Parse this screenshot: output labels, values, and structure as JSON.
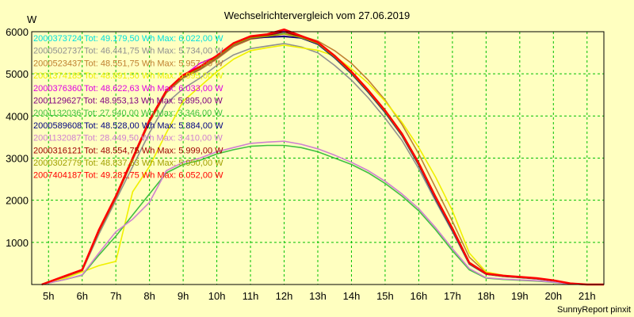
{
  "chart_data": {
    "type": "line",
    "title": "Wechselrichtervergleich vom 27.06.2019",
    "ylabel": "W",
    "ylim": [
      0,
      6000
    ],
    "xlim": [
      4.5,
      21.5
    ],
    "yticks": [
      1000,
      2000,
      3000,
      4000,
      5000,
      6000
    ],
    "xticks": [
      {
        "x": 5,
        "label": "5h"
      },
      {
        "x": 6,
        "label": "6h"
      },
      {
        "x": 7,
        "label": "7h"
      },
      {
        "x": 8,
        "label": "8h"
      },
      {
        "x": 9,
        "label": "9h"
      },
      {
        "x": 10,
        "label": "10h"
      },
      {
        "x": 11,
        "label": "11h"
      },
      {
        "x": 12,
        "label": "12h"
      },
      {
        "x": 13,
        "label": "13h"
      },
      {
        "x": 14,
        "label": "14h"
      },
      {
        "x": 15,
        "label": "15h"
      },
      {
        "x": 16,
        "label": "16h"
      },
      {
        "x": 17,
        "label": "17h"
      },
      {
        "x": 18,
        "label": "18h"
      },
      {
        "x": 19,
        "label": "19h"
      },
      {
        "x": 20,
        "label": "20h"
      },
      {
        "x": 21,
        "label": "21h"
      }
    ],
    "grid": true,
    "legend_placement": "top-left",
    "footer": "SunnyReport pinxit",
    "series": [
      {
        "name": "2000373724 Tot: 49.179,50 Wh Max: 6.022,00 W",
        "color": "#00e0e0",
        "x": [
          4.8,
          5.5,
          6,
          6.5,
          7,
          7.5,
          8,
          8.5,
          9,
          9.5,
          10,
          10.5,
          11,
          11.5,
          12,
          12.5,
          13,
          13.5,
          14,
          14.5,
          15,
          15.5,
          16,
          16.5,
          17,
          17.5,
          18,
          18.5,
          19,
          19.5,
          20,
          20.5,
          21,
          21.5
        ],
        "y": [
          0,
          200,
          350,
          1300,
          2100,
          3000,
          3900,
          4600,
          4950,
          5150,
          5400,
          5700,
          5860,
          5900,
          5960,
          5860,
          5720,
          5400,
          5020,
          4580,
          4100,
          3550,
          2850,
          2050,
          1300,
          500,
          250,
          200,
          170,
          140,
          90,
          20,
          0,
          0
        ]
      },
      {
        "name": "2000502737 Tot: 46.441,75 Wh Max: 5.734,00 W",
        "color": "#909090",
        "x": [
          4.8,
          5.5,
          6,
          6.5,
          7,
          7.5,
          8,
          8.5,
          9,
          9.5,
          10,
          10.5,
          11,
          11.5,
          12,
          12.5,
          13,
          13.5,
          14,
          14.5,
          15,
          15.5,
          16,
          16.5,
          17,
          17.5,
          18,
          18.5,
          19,
          19.5,
          20,
          20.5,
          21,
          21.5
        ],
        "y": [
          0,
          180,
          320,
          1200,
          2000,
          2800,
          3600,
          4300,
          4650,
          4900,
          5200,
          5450,
          5600,
          5660,
          5720,
          5640,
          5500,
          5200,
          4850,
          4430,
          3950,
          3420,
          2750,
          1980,
          1250,
          480,
          240,
          190,
          160,
          130,
          80,
          20,
          0,
          0
        ]
      },
      {
        "name": "2000523437 Tot: 48.551,75 Wh Max: 5.957,00 W",
        "color": "#c08030",
        "x": [
          4.8,
          5.5,
          6,
          6.5,
          7,
          7.5,
          8,
          8.5,
          9,
          9.5,
          10,
          10.5,
          11,
          11.5,
          12,
          12.5,
          13,
          13.5,
          14,
          14.5,
          15,
          15.5,
          16,
          16.5,
          17,
          17.5,
          18,
          18.5,
          19,
          19.5,
          20,
          20.5,
          21,
          21.5
        ],
        "y": [
          0,
          190,
          330,
          1250,
          2050,
          2950,
          3850,
          4550,
          4900,
          5100,
          5350,
          5650,
          5820,
          5880,
          5950,
          5900,
          5780,
          5550,
          5250,
          4850,
          4380,
          3800,
          3100,
          2300,
          1500,
          650,
          280,
          210,
          180,
          150,
          100,
          30,
          0,
          0
        ]
      },
      {
        "name": "2001374185 Tot: 48.891,50 Wh Max: 5.995,00 W",
        "color": "#f0f000",
        "x": [
          4.8,
          5.5,
          6,
          6.5,
          7,
          7.5,
          8,
          8.5,
          9,
          9.5,
          10,
          10.5,
          11,
          11.5,
          12,
          12.5,
          13,
          13.5,
          14,
          14.5,
          15,
          15.5,
          16,
          16.5,
          17,
          17.5,
          18,
          18.5,
          19,
          19.5,
          20,
          20.5,
          21,
          21.5
        ],
        "y": [
          0,
          150,
          300,
          450,
          550,
          2200,
          2800,
          3600,
          4350,
          4700,
          5050,
          5350,
          5550,
          5620,
          5680,
          5620,
          5560,
          5420,
          5120,
          4780,
          4350,
          3850,
          3250,
          2550,
          1750,
          750,
          300,
          220,
          180,
          140,
          90,
          20,
          0,
          0
        ]
      },
      {
        "name": "2000376360 Tot: 48.622,63 Wh Max: 6.033,00 W",
        "color": "#e000e0",
        "x": [
          4.8,
          5.5,
          6,
          6.5,
          7,
          7.5,
          8,
          8.5,
          9,
          9.5,
          10,
          10.5,
          11,
          11.5,
          12,
          12.5,
          13,
          13.5,
          14,
          14.5,
          15,
          15.5,
          16,
          16.5,
          17,
          17.5,
          18,
          18.5,
          19,
          19.5,
          20,
          20.5,
          21,
          21.5
        ],
        "y": [
          0,
          200,
          340,
          1280,
          2080,
          2980,
          3880,
          4580,
          4950,
          5250,
          5420,
          5720,
          5880,
          5920,
          6030,
          5880,
          5730,
          5410,
          5030,
          4590,
          4110,
          3560,
          2860,
          2060,
          1310,
          510,
          255,
          205,
          175,
          145,
          95,
          25,
          0,
          0
        ]
      },
      {
        "name": "2001129627 Tot: 48.953,13 Wh Max: 5.895,00 W",
        "color": "#800080",
        "x": [
          4.8,
          5.5,
          6,
          6.5,
          7,
          7.5,
          8,
          8.5,
          9,
          9.5,
          10,
          10.5,
          11,
          11.5,
          12,
          12.5,
          13,
          13.5,
          14,
          14.5,
          15,
          15.5,
          16,
          16.5,
          17,
          17.5,
          18,
          18.5,
          19,
          19.5,
          20,
          20.5,
          21,
          21.5
        ],
        "y": [
          0,
          195,
          335,
          1270,
          2070,
          2970,
          3870,
          4570,
          4920,
          5120,
          5380,
          5680,
          5840,
          5870,
          5895,
          5850,
          5700,
          5390,
          5010,
          4570,
          4090,
          3540,
          2840,
          2040,
          1290,
          495,
          245,
          198,
          168,
          138,
          88,
          22,
          0,
          0
        ]
      },
      {
        "name": "2001132036 Tot: 27.940,00 Wh Max: 3.346,00 W",
        "color": "#40c040",
        "x": [
          4.8,
          5.5,
          6,
          6.5,
          7,
          7.5,
          8,
          8.5,
          9,
          9.5,
          10,
          10.5,
          11,
          11.5,
          12,
          12.5,
          13,
          13.5,
          14,
          14.5,
          15,
          15.5,
          16,
          16.5,
          17,
          17.5,
          18,
          18.5,
          19,
          19.5,
          20,
          20.5,
          21,
          21.5
        ],
        "y": [
          0,
          120,
          220,
          700,
          1150,
          1650,
          2150,
          2650,
          2850,
          2950,
          3100,
          3200,
          3280,
          3300,
          3300,
          3250,
          3150,
          3000,
          2850,
          2650,
          2400,
          2100,
          1750,
          1300,
          800,
          350,
          150,
          120,
          100,
          80,
          50,
          10,
          0,
          0
        ]
      },
      {
        "name": "2000589608 Tot: 48.528,00 Wh Max: 5.884,00 W",
        "color": "#000080",
        "x": [
          4.8,
          5.5,
          6,
          6.5,
          7,
          7.5,
          8,
          8.5,
          9,
          9.5,
          10,
          10.5,
          11,
          11.5,
          12,
          12.5,
          13,
          13.5,
          14,
          14.5,
          15,
          15.5,
          16,
          16.5,
          17,
          17.5,
          18,
          18.5,
          19,
          19.5,
          20,
          20.5,
          21,
          21.5
        ],
        "y": [
          0,
          198,
          338,
          1275,
          2075,
          2975,
          3875,
          4575,
          4930,
          5130,
          5390,
          5690,
          5850,
          5870,
          5884,
          5850,
          5700,
          5380,
          5000,
          4560,
          4080,
          3530,
          2830,
          2030,
          1280,
          490,
          245,
          198,
          168,
          138,
          88,
          22,
          0,
          0
        ]
      },
      {
        "name": "2001132087 Tot: 28.449,50 Wh Max: 3.410,00 W",
        "color": "#d080d0",
        "x": [
          4.8,
          5.5,
          6,
          6.5,
          7,
          7.5,
          8,
          8.5,
          9,
          9.5,
          10,
          10.5,
          11,
          11.5,
          12,
          12.5,
          13,
          13.5,
          14,
          14.5,
          15,
          15.5,
          16,
          16.5,
          17,
          17.5,
          18,
          18.5,
          19,
          19.5,
          20,
          20.5,
          21,
          21.5
        ],
        "y": [
          0,
          120,
          230,
          750,
          1250,
          1550,
          1950,
          2700,
          2900,
          3000,
          3150,
          3250,
          3350,
          3380,
          3400,
          3330,
          3220,
          3070,
          2900,
          2700,
          2450,
          2150,
          1800,
          1350,
          850,
          380,
          160,
          130,
          110,
          90,
          55,
          12,
          0,
          0
        ]
      },
      {
        "name": "2000316121 Tot: 48.554,75 Wh Max: 5.999,00 W",
        "color": "#a00000",
        "x": [
          4.8,
          5.5,
          6,
          6.5,
          7,
          7.5,
          8,
          8.5,
          9,
          9.5,
          10,
          10.5,
          11,
          11.5,
          12,
          12.5,
          13,
          13.5,
          14,
          14.5,
          15,
          15.5,
          16,
          16.5,
          17,
          17.5,
          18,
          18.5,
          19,
          19.5,
          20,
          20.5,
          21,
          21.5
        ],
        "y": [
          0,
          200,
          345,
          1285,
          2085,
          2985,
          3885,
          4585,
          4960,
          5160,
          5410,
          5710,
          5870,
          5910,
          5999,
          5880,
          5730,
          5410,
          5030,
          4590,
          4110,
          3560,
          2860,
          2060,
          1310,
          505,
          252,
          202,
          172,
          142,
          92,
          24,
          0,
          0
        ]
      },
      {
        "name": "2000302779 Tot: 48.837,63 Wh Max: 5.950,00 W",
        "color": "#a0a000",
        "x": [
          4.8,
          5.5,
          6,
          6.5,
          7,
          7.5,
          8,
          8.5,
          9,
          9.5,
          10,
          10.5,
          11,
          11.5,
          12,
          12.5,
          13,
          13.5,
          14,
          14.5,
          15,
          15.5,
          16,
          16.5,
          17,
          17.5,
          18,
          18.5,
          19,
          19.5,
          20,
          20.5,
          21,
          21.5
        ],
        "y": [
          0,
          195,
          335,
          1270,
          2070,
          2970,
          3870,
          4570,
          4930,
          5130,
          5390,
          5690,
          5850,
          5890,
          5950,
          5860,
          5720,
          5400,
          5020,
          4580,
          4100,
          3550,
          2850,
          2050,
          1300,
          500,
          250,
          200,
          170,
          140,
          90,
          22,
          0,
          0
        ]
      },
      {
        "name": "2007404187 Tot: 49.281,75 Wh Max: 6.052,00 W",
        "color": "#ff0000",
        "x": [
          4.8,
          5.5,
          6,
          6.5,
          7,
          7.5,
          8,
          8.5,
          9,
          9.5,
          10,
          10.5,
          11,
          11.5,
          12,
          12.5,
          13,
          13.5,
          14,
          14.5,
          15,
          15.5,
          16,
          16.5,
          17,
          17.5,
          18,
          18.5,
          19,
          19.5,
          20,
          20.5,
          21,
          21.5
        ],
        "y": [
          0,
          205,
          350,
          1300,
          2100,
          3000,
          3900,
          4600,
          4970,
          5170,
          5430,
          5730,
          5890,
          5940,
          6052,
          5900,
          5750,
          5430,
          5050,
          4610,
          4130,
          3580,
          2880,
          2080,
          1330,
          520,
          260,
          210,
          180,
          150,
          100,
          26,
          0,
          0
        ]
      }
    ]
  }
}
